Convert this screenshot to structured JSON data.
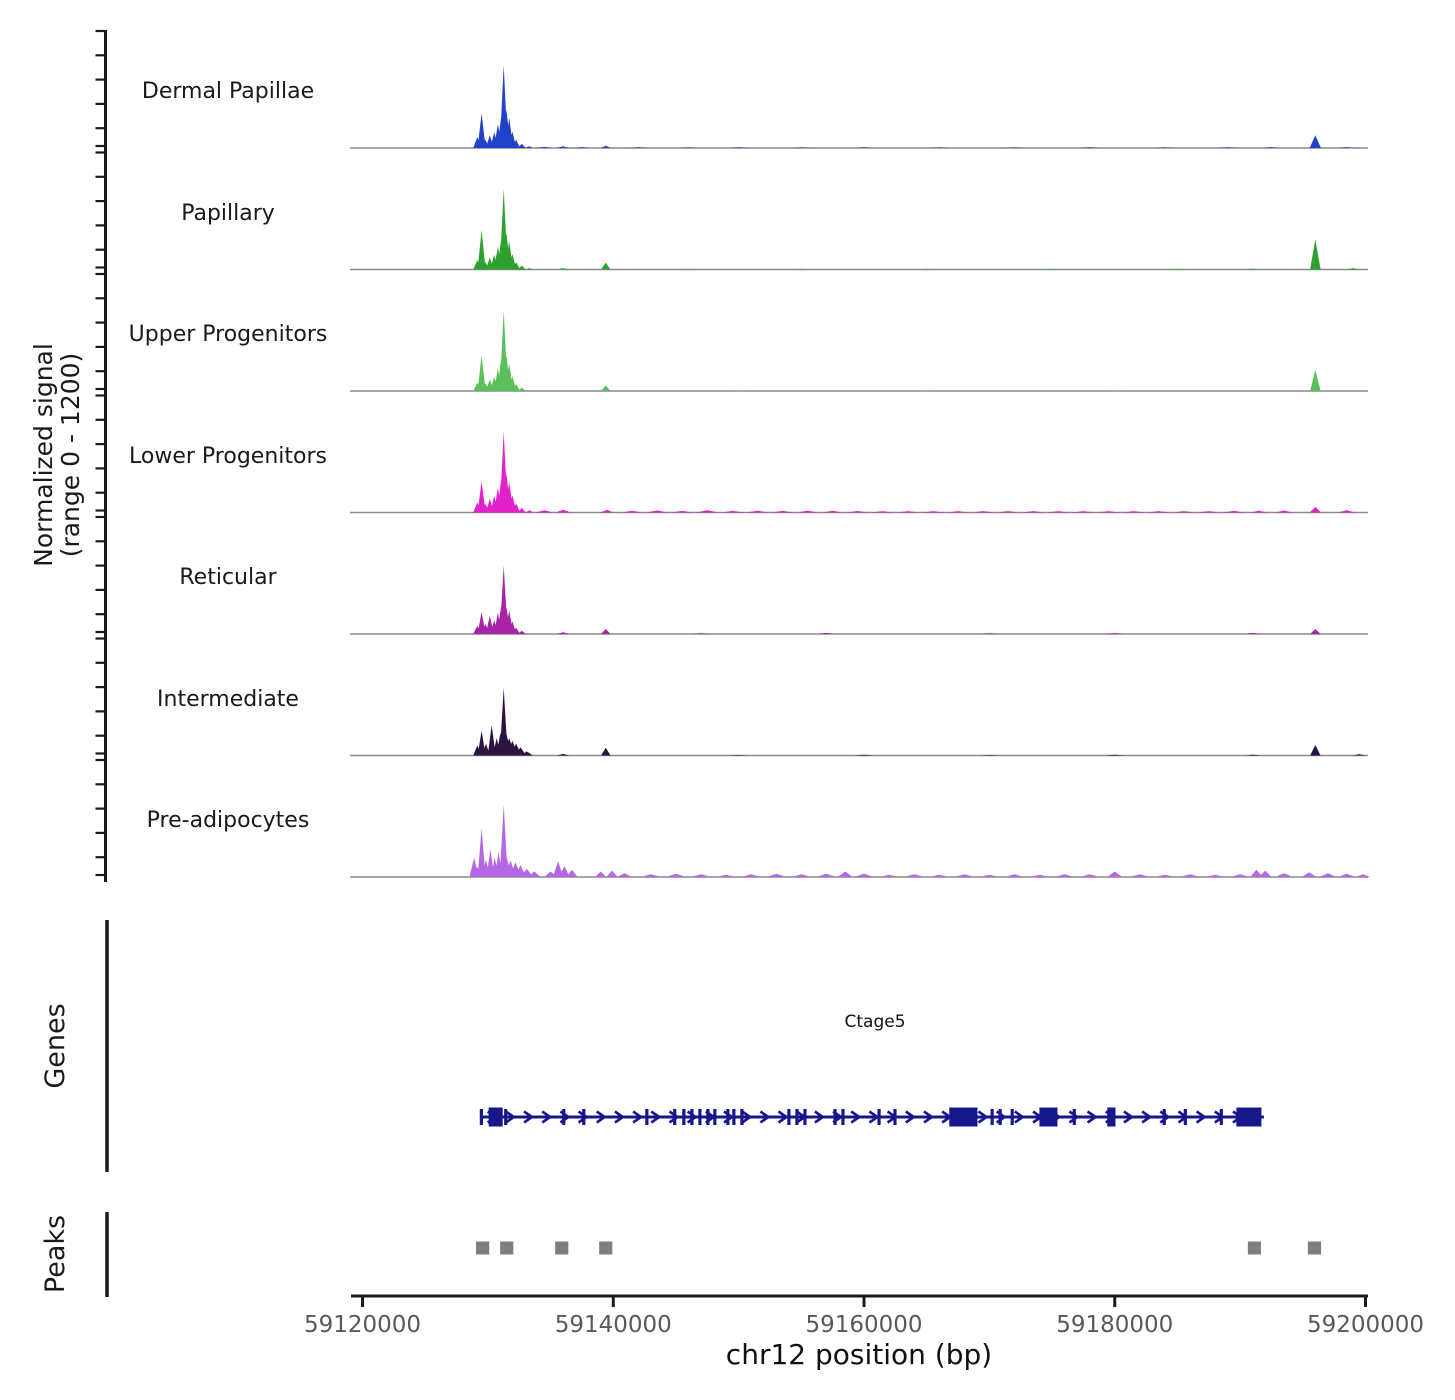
{
  "figure": {
    "signal_section": {
      "ylabel_line1": "Normalized signal",
      "ylabel_line2": "(range 0 - 1200)"
    },
    "genes_section": {
      "label": "Genes"
    },
    "peaks_section": {
      "label": "Peaks"
    }
  },
  "colors": {
    "axis": "#1a1a1a",
    "baseline": "#8a8a8a",
    "tick_label": "#595959",
    "gene": "#17178c",
    "peak_box": "#7f7f7f"
  },
  "chart_data": {
    "type": "area",
    "title": "",
    "xlabel": "chr12 position (bp)",
    "ylabel": "Normalized signal (range 0 - 1200)",
    "xlim": [
      59119000,
      59200200
    ],
    "x_ticks": [
      59120000,
      59140000,
      59160000,
      59180000,
      59200000
    ],
    "x_tick_labels": [
      "59120000",
      "59140000",
      "59160000",
      "59180000",
      "59200000"
    ],
    "track_ylim": [
      0,
      1200
    ],
    "grid": false,
    "legend": "none",
    "tracks": [
      {
        "name": "Dermal Papillae",
        "color": "#2141c8",
        "signal": [
          [
            59129150,
            120
          ],
          [
            59129500,
            380
          ],
          [
            59129800,
            90
          ],
          [
            59130150,
            140
          ],
          [
            59130500,
            170
          ],
          [
            59130800,
            260
          ],
          [
            59131050,
            330
          ],
          [
            59131260,
            900
          ],
          [
            59131480,
            420
          ],
          [
            59131700,
            330
          ],
          [
            59131950,
            180
          ],
          [
            59132250,
            90
          ],
          [
            59132700,
            45
          ],
          [
            59133300,
            20
          ],
          [
            59134500,
            12,
            600
          ],
          [
            59136000,
            18,
            500
          ],
          [
            59137500,
            10,
            600
          ],
          [
            59139400,
            25,
            400
          ],
          [
            59142000,
            8,
            800
          ],
          [
            59146000,
            6,
            800
          ],
          [
            59150000,
            8,
            800
          ],
          [
            59155000,
            6,
            800
          ],
          [
            59160000,
            8,
            800
          ],
          [
            59166000,
            6,
            800
          ],
          [
            59172000,
            6,
            800
          ],
          [
            59178000,
            8,
            800
          ],
          [
            59184000,
            6,
            800
          ],
          [
            59189000,
            8,
            800
          ],
          [
            59192500,
            10,
            600
          ],
          [
            59196000,
            140,
            450
          ],
          [
            59198500,
            10,
            600
          ]
        ]
      },
      {
        "name": "Papillary",
        "color": "#2ea02e",
        "signal": [
          [
            59129150,
            100
          ],
          [
            59129500,
            430
          ],
          [
            59129800,
            80
          ],
          [
            59130150,
            130
          ],
          [
            59130500,
            160
          ],
          [
            59130800,
            250
          ],
          [
            59131050,
            320
          ],
          [
            59131260,
            880
          ],
          [
            59131480,
            400
          ],
          [
            59131700,
            310
          ],
          [
            59131950,
            170
          ],
          [
            59132250,
            80
          ],
          [
            59132700,
            40
          ],
          [
            59133300,
            15
          ],
          [
            59136000,
            15,
            500
          ],
          [
            59139400,
            75,
            380
          ],
          [
            59146000,
            6,
            800
          ],
          [
            59155000,
            6,
            800
          ],
          [
            59165000,
            6,
            800
          ],
          [
            59175000,
            6,
            800
          ],
          [
            59185000,
            6,
            800
          ],
          [
            59191000,
            8,
            600
          ],
          [
            59196000,
            330,
            420
          ],
          [
            59199000,
            15,
            500
          ]
        ]
      },
      {
        "name": "Upper Progenitors",
        "color": "#5bc05b",
        "signal": [
          [
            59129150,
            90
          ],
          [
            59129500,
            390
          ],
          [
            59129800,
            85
          ],
          [
            59130150,
            125
          ],
          [
            59130500,
            155
          ],
          [
            59130800,
            245
          ],
          [
            59131050,
            340
          ],
          [
            59131260,
            880
          ],
          [
            59131480,
            390
          ],
          [
            59131700,
            300
          ],
          [
            59131950,
            160
          ],
          [
            59132250,
            75
          ],
          [
            59132700,
            35
          ],
          [
            59139400,
            60,
            380
          ],
          [
            59150000,
            5,
            800
          ],
          [
            59165000,
            5,
            800
          ],
          [
            59180000,
            5,
            800
          ],
          [
            59196000,
            230,
            420
          ]
        ]
      },
      {
        "name": "Lower Progenitors",
        "color": "#e321cb",
        "signal": [
          [
            59129150,
            110
          ],
          [
            59129500,
            340
          ],
          [
            59129800,
            95
          ],
          [
            59130150,
            150
          ],
          [
            59130500,
            180
          ],
          [
            59130800,
            270
          ],
          [
            59131050,
            350
          ],
          [
            59131260,
            880
          ],
          [
            59131480,
            430
          ],
          [
            59131700,
            340
          ],
          [
            59131950,
            190
          ],
          [
            59132250,
            100
          ],
          [
            59132700,
            50
          ],
          [
            59133300,
            25
          ],
          [
            59134500,
            25,
            700
          ],
          [
            59136000,
            30,
            600
          ],
          [
            59139500,
            30,
            500
          ],
          [
            59141500,
            18,
            900
          ],
          [
            59143500,
            22,
            900
          ],
          [
            59145500,
            18,
            900
          ],
          [
            59147500,
            25,
            900
          ],
          [
            59149500,
            18,
            900
          ],
          [
            59151500,
            20,
            900
          ],
          [
            59153500,
            18,
            900
          ],
          [
            59155500,
            20,
            900
          ],
          [
            59157500,
            18,
            900
          ],
          [
            59159500,
            16,
            900
          ],
          [
            59161500,
            15,
            900
          ],
          [
            59163500,
            15,
            900
          ],
          [
            59165500,
            15,
            900
          ],
          [
            59167500,
            15,
            900
          ],
          [
            59169500,
            15,
            900
          ],
          [
            59171500,
            15,
            900
          ],
          [
            59173500,
            15,
            900
          ],
          [
            59175500,
            15,
            900
          ],
          [
            59177500,
            15,
            900
          ],
          [
            59179500,
            15,
            900
          ],
          [
            59181500,
            15,
            900
          ],
          [
            59183500,
            15,
            900
          ],
          [
            59185500,
            15,
            900
          ],
          [
            59187500,
            15,
            900
          ],
          [
            59189500,
            18,
            900
          ],
          [
            59191500,
            20,
            700
          ],
          [
            59193500,
            22,
            700
          ],
          [
            59196000,
            60,
            450
          ],
          [
            59198500,
            25,
            700
          ]
        ]
      },
      {
        "name": "Reticular",
        "color": "#a623a6",
        "signal": [
          [
            59129150,
            90
          ],
          [
            59129500,
            240
          ],
          [
            59129800,
            110
          ],
          [
            59130150,
            200
          ],
          [
            59130500,
            150
          ],
          [
            59130800,
            230
          ],
          [
            59131050,
            300
          ],
          [
            59131260,
            745
          ],
          [
            59131480,
            290
          ],
          [
            59131700,
            260
          ],
          [
            59131950,
            140
          ],
          [
            59132250,
            70
          ],
          [
            59132700,
            35
          ],
          [
            59136000,
            20,
            500
          ],
          [
            59139400,
            55,
            380
          ],
          [
            59147000,
            8,
            800
          ],
          [
            59157000,
            12,
            700
          ],
          [
            59170000,
            8,
            800
          ],
          [
            59180000,
            10,
            800
          ],
          [
            59191000,
            12,
            600
          ],
          [
            59196000,
            55,
            420
          ]
        ]
      },
      {
        "name": "Intermediate",
        "color": "#2d1342",
        "signal": [
          [
            59129150,
            110
          ],
          [
            59129500,
            270
          ],
          [
            59129850,
            130
          ],
          [
            59130300,
            330
          ],
          [
            59130700,
            190
          ],
          [
            59131000,
            250
          ],
          [
            59131260,
            740
          ],
          [
            59131480,
            230,
            420
          ],
          [
            59131700,
            190,
            450
          ],
          [
            59131950,
            160,
            450
          ],
          [
            59132250,
            130,
            450
          ],
          [
            59132600,
            90,
            450
          ],
          [
            59133100,
            45,
            500
          ],
          [
            59136000,
            18,
            500
          ],
          [
            59139400,
            85,
            380
          ],
          [
            59150000,
            6,
            800
          ],
          [
            59160000,
            8,
            800
          ],
          [
            59170000,
            6,
            800
          ],
          [
            59180000,
            8,
            800
          ],
          [
            59191000,
            10,
            600
          ],
          [
            59196000,
            115,
            420
          ],
          [
            59199500,
            15,
            500
          ]
        ]
      },
      {
        "name": "Pre-adipocytes",
        "color": "#b468e6",
        "signal": [
          [
            59128900,
            210,
            380
          ],
          [
            59129150,
            110
          ],
          [
            59129500,
            530
          ],
          [
            59129850,
            190
          ],
          [
            59130200,
            300
          ],
          [
            59130550,
            210
          ],
          [
            59130850,
            270
          ],
          [
            59131260,
            790
          ],
          [
            59131500,
            210,
            420
          ],
          [
            59131800,
            180,
            450
          ],
          [
            59132200,
            160,
            450
          ],
          [
            59132600,
            130,
            450
          ],
          [
            59133100,
            90,
            500
          ],
          [
            59133700,
            60,
            500
          ],
          [
            59135000,
            60,
            500
          ],
          [
            59135600,
            170,
            420
          ],
          [
            59136100,
            120,
            420
          ],
          [
            59136700,
            80,
            450
          ],
          [
            59139000,
            60,
            450
          ],
          [
            59139900,
            70,
            450
          ],
          [
            59140900,
            40,
            600
          ],
          [
            59143000,
            30,
            800
          ],
          [
            59145000,
            35,
            800
          ],
          [
            59147000,
            30,
            800
          ],
          [
            59149000,
            25,
            800
          ],
          [
            59151000,
            30,
            800
          ],
          [
            59153000,
            35,
            800
          ],
          [
            59155000,
            30,
            800
          ],
          [
            59157000,
            35,
            800
          ],
          [
            59158500,
            60,
            600
          ],
          [
            59160000,
            35,
            800
          ],
          [
            59162000,
            25,
            800
          ],
          [
            59164000,
            30,
            800
          ],
          [
            59166000,
            25,
            800
          ],
          [
            59168000,
            30,
            800
          ],
          [
            59170000,
            25,
            800
          ],
          [
            59172000,
            30,
            800
          ],
          [
            59174000,
            25,
            800
          ],
          [
            59176000,
            30,
            800
          ],
          [
            59178000,
            30,
            800
          ],
          [
            59180000,
            60,
            600
          ],
          [
            59182000,
            30,
            800
          ],
          [
            59184000,
            25,
            800
          ],
          [
            59186000,
            30,
            800
          ],
          [
            59188000,
            25,
            800
          ],
          [
            59190000,
            30,
            800
          ],
          [
            59191300,
            80,
            500
          ],
          [
            59192000,
            70,
            500
          ],
          [
            59193500,
            40,
            700
          ],
          [
            59195500,
            50,
            600
          ],
          [
            59197000,
            40,
            700
          ],
          [
            59198500,
            35,
            700
          ],
          [
            59199800,
            30,
            600
          ]
        ]
      }
    ],
    "gene_track": {
      "name": "Ctage5",
      "strand": "+",
      "start": 59129480,
      "end": 59191900,
      "arrow_spacing_bp": 1450,
      "exon_bars": [
        59129480,
        59131420,
        59136050,
        59137650,
        59142680,
        59144900,
        59145630,
        59146270,
        59146910,
        59147550,
        59148100,
        59149140,
        59149620,
        59150260,
        59154010,
        59154650,
        59155290,
        59157690,
        59158320,
        59161200,
        59162470,
        59170220,
        59170860,
        59171820,
        59176770,
        59183950,
        59185630,
        59188500
      ],
      "exon_boxes": [
        [
          59130060,
          59131180
        ],
        [
          59166800,
          59169050
        ],
        [
          59173990,
          59175430
        ],
        [
          59179400,
          59180060
        ],
        [
          59189700,
          59191700
        ]
      ]
    },
    "peak_track": {
      "width_bp": 1050,
      "positions": [
        59129580,
        59131500,
        59135890,
        59139400,
        59191140,
        59195930
      ]
    }
  }
}
